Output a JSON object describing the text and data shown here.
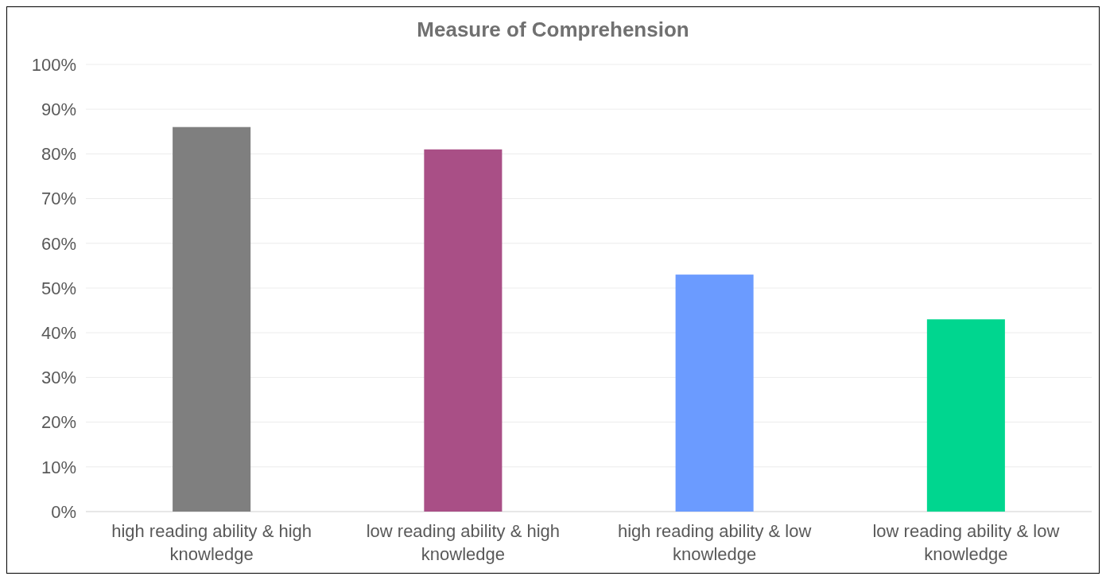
{
  "chart_data": {
    "type": "bar",
    "title": "Measure  of Comprehension",
    "categories": [
      "high reading ability & high knowledge",
      "low reading ability & high knowledge",
      "high reading ability & low knowledge",
      "low reading ability &  low knowledge"
    ],
    "values": [
      86,
      81,
      53,
      43
    ],
    "colors": [
      "#7f7f7f",
      "#a94f86",
      "#6b9bff",
      "#00d68f"
    ],
    "ylim": [
      0,
      100
    ],
    "yticks": [
      {
        "value": 0,
        "label": "0%"
      },
      {
        "value": 10,
        "label": "10%"
      },
      {
        "value": 20,
        "label": "20%"
      },
      {
        "value": 30,
        "label": "30%"
      },
      {
        "value": 40,
        "label": "40%"
      },
      {
        "value": 50,
        "label": "50%"
      },
      {
        "value": 60,
        "label": "60%"
      },
      {
        "value": 70,
        "label": "70%"
      },
      {
        "value": 80,
        "label": "80%"
      },
      {
        "value": 90,
        "label": "90%"
      },
      {
        "value": 100,
        "label": "100%"
      }
    ],
    "grid": "y"
  }
}
